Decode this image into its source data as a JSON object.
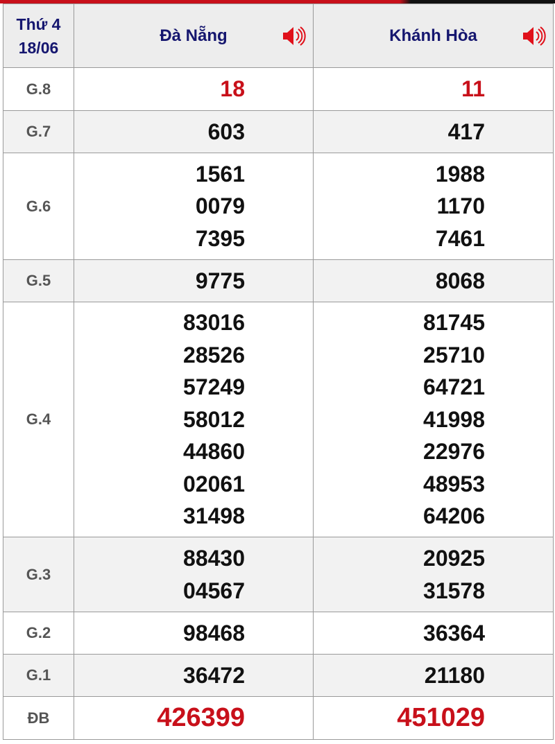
{
  "header": {
    "day": "Thứ 4",
    "date": "18/06",
    "provinces": [
      "Đà Nẵng",
      "Khánh Hòa"
    ],
    "speaker_icon": "speaker-icon",
    "accent": "#c8101a"
  },
  "rows": [
    {
      "label": "G.8",
      "values": [
        [
          "18"
        ],
        [
          "11"
        ]
      ]
    },
    {
      "label": "G.7",
      "values": [
        [
          "603"
        ],
        [
          "417"
        ]
      ]
    },
    {
      "label": "G.6",
      "values": [
        [
          "1561",
          "0079",
          "7395"
        ],
        [
          "1988",
          "1170",
          "7461"
        ]
      ]
    },
    {
      "label": "G.5",
      "values": [
        [
          "9775"
        ],
        [
          "8068"
        ]
      ]
    },
    {
      "label": "G.4",
      "values": [
        [
          "83016",
          "28526",
          "57249",
          "58012",
          "44860",
          "02061",
          "31498"
        ],
        [
          "81745",
          "25710",
          "64721",
          "41998",
          "22976",
          "48953",
          "64206"
        ]
      ]
    },
    {
      "label": "G.3",
      "values": [
        [
          "88430",
          "04567"
        ],
        [
          "20925",
          "31578"
        ]
      ]
    },
    {
      "label": "G.2",
      "values": [
        [
          "98468"
        ],
        [
          "36364"
        ]
      ]
    },
    {
      "label": "G.1",
      "values": [
        [
          "36472"
        ],
        [
          "21180"
        ]
      ]
    },
    {
      "label": "ĐB",
      "values": [
        [
          "426399"
        ],
        [
          "451029"
        ]
      ]
    }
  ]
}
